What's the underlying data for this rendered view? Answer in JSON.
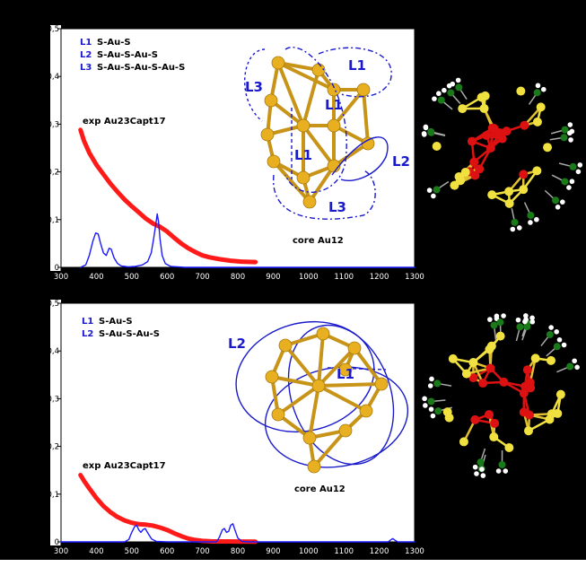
{
  "figure": {
    "background": "#000000",
    "plot_background": "#ffffff",
    "colors": {
      "experiment": "#ff1a1a",
      "theory": "#1a1aff",
      "legend": "#1a1acc",
      "gold": "#e8b020",
      "sulfur": "#f0e040",
      "red_atoms": "#dd1111",
      "carbon": "#1a7a1a",
      "hydrogen": "#ffffff"
    }
  },
  "chart_data": [
    {
      "type": "line",
      "xlim": [
        300,
        1300
      ],
      "ylim": [
        0,
        0.5
      ],
      "xticks": [
        "300",
        "400",
        "500",
        "600",
        "700",
        "800",
        "900",
        "1000",
        "1100",
        "1200",
        "1300"
      ],
      "yticks": [
        "0",
        "0.1",
        "0.2",
        "0.3",
        "0.4",
        "0.5"
      ],
      "ytick_labels": [
        "0",
        "0,1",
        "0,2",
        "0,3",
        "0,4",
        "0,5"
      ],
      "legend": [
        {
          "key": "L1",
          "text": "S-Au-S"
        },
        {
          "key": "L2",
          "text": "S-Au-S-Au-S"
        },
        {
          "key": "L3",
          "text": "S-Au-S-Au-S-Au-S"
        }
      ],
      "annotations": {
        "exp_label": "exp Au23Capt17",
        "core_label": "core Au12",
        "structure_labels": [
          "L1",
          "L3",
          "L1",
          "L1",
          "L2",
          "L3"
        ]
      },
      "series": [
        {
          "name": "exp Au23Capt17",
          "color": "#ff1a1a",
          "points": [
            [
              355,
              0.288
            ],
            [
              365,
              0.265
            ],
            [
              380,
              0.24
            ],
            [
              400,
              0.215
            ],
            [
              420,
              0.195
            ],
            [
              440,
              0.175
            ],
            [
              460,
              0.158
            ],
            [
              480,
              0.142
            ],
            [
              500,
              0.128
            ],
            [
              520,
              0.115
            ],
            [
              540,
              0.102
            ],
            [
              560,
              0.092
            ],
            [
              580,
              0.085
            ],
            [
              600,
              0.075
            ],
            [
              620,
              0.062
            ],
            [
              640,
              0.05
            ],
            [
              660,
              0.04
            ],
            [
              680,
              0.032
            ],
            [
              700,
              0.025
            ],
            [
              720,
              0.021
            ],
            [
              750,
              0.017
            ],
            [
              780,
              0.014
            ],
            [
              810,
              0.012
            ],
            [
              850,
              0.011
            ]
          ]
        },
        {
          "name": "",
          "color": "#1a1aff",
          "points": [
            [
              355,
              0
            ],
            [
              370,
              0.005
            ],
            [
              380,
              0.025
            ],
            [
              390,
              0.055
            ],
            [
              398,
              0.072
            ],
            [
              405,
              0.07
            ],
            [
              412,
              0.05
            ],
            [
              420,
              0.03
            ],
            [
              428,
              0.025
            ],
            [
              436,
              0.04
            ],
            [
              442,
              0.038
            ],
            [
              450,
              0.02
            ],
            [
              460,
              0.008
            ],
            [
              470,
              0.003
            ],
            [
              490,
              0.001
            ],
            [
              510,
              0.002
            ],
            [
              530,
              0.005
            ],
            [
              545,
              0.012
            ],
            [
              555,
              0.03
            ],
            [
              562,
              0.06
            ],
            [
              568,
              0.09
            ],
            [
              572,
              0.112
            ],
            [
              576,
              0.095
            ],
            [
              580,
              0.06
            ],
            [
              586,
              0.025
            ],
            [
              595,
              0.008
            ],
            [
              610,
              0.002
            ],
            [
              650,
              0
            ],
            [
              1300,
              0
            ]
          ]
        }
      ]
    },
    {
      "type": "line",
      "xlim": [
        300,
        1300
      ],
      "ylim": [
        0,
        0.5
      ],
      "xticks": [
        "300",
        "400",
        "500",
        "600",
        "700",
        "800",
        "900",
        "1000",
        "1100",
        "1200",
        "1300"
      ],
      "yticks": [
        "0",
        "0.1",
        "0.2",
        "0.3",
        "0.4",
        "0.5"
      ],
      "ytick_labels": [
        "0",
        "0,1",
        "0,2",
        "0,3",
        "0,4",
        "0,5"
      ],
      "legend": [
        {
          "key": "L1",
          "text": "S-Au-S"
        },
        {
          "key": "L2",
          "text": "S-Au-S-Au-S"
        }
      ],
      "annotations": {
        "exp_label": "exp Au23Capt17",
        "core_label": "core Au12",
        "structure_labels": [
          "L2",
          "L1"
        ]
      },
      "series": [
        {
          "name": "exp Au23Capt17",
          "color": "#ff1a1a",
          "points": [
            [
              355,
              0.14
            ],
            [
              365,
              0.128
            ],
            [
              380,
              0.112
            ],
            [
              400,
              0.092
            ],
            [
              420,
              0.075
            ],
            [
              440,
              0.062
            ],
            [
              460,
              0.052
            ],
            [
              480,
              0.045
            ],
            [
              500,
              0.04
            ],
            [
              520,
              0.037
            ],
            [
              540,
              0.036
            ],
            [
              560,
              0.034
            ],
            [
              580,
              0.03
            ],
            [
              600,
              0.025
            ],
            [
              620,
              0.018
            ],
            [
              640,
              0.012
            ],
            [
              660,
              0.007
            ],
            [
              680,
              0.004
            ],
            [
              700,
              0.002
            ],
            [
              730,
              0.001
            ],
            [
              760,
              0.001
            ],
            [
              800,
              0.0008
            ],
            [
              850,
              0.0005
            ]
          ]
        },
        {
          "name": "",
          "color": "#1a1aff",
          "points": [
            [
              300,
              0
            ],
            [
              480,
              0
            ],
            [
              492,
              0.005
            ],
            [
              500,
              0.02
            ],
            [
              508,
              0.032
            ],
            [
              514,
              0.035
            ],
            [
              520,
              0.025
            ],
            [
              526,
              0.02
            ],
            [
              532,
              0.026
            ],
            [
              538,
              0.028
            ],
            [
              546,
              0.018
            ],
            [
              556,
              0.006
            ],
            [
              570,
              0.001
            ],
            [
              600,
              0
            ],
            [
              740,
              0
            ],
            [
              748,
              0.01
            ],
            [
              756,
              0.025
            ],
            [
              762,
              0.028
            ],
            [
              768,
              0.02
            ],
            [
              774,
              0.022
            ],
            [
              780,
              0.035
            ],
            [
              786,
              0.038
            ],
            [
              792,
              0.025
            ],
            [
              800,
              0.008
            ],
            [
              812,
              0.001
            ],
            [
              830,
              0
            ],
            [
              1225,
              0
            ],
            [
              1232,
              0.004
            ],
            [
              1238,
              0.007
            ],
            [
              1244,
              0.004
            ],
            [
              1252,
              0
            ],
            [
              1300,
              0
            ]
          ]
        }
      ]
    }
  ]
}
